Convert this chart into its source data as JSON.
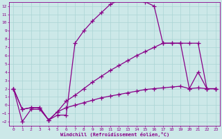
{
  "xlabel": "Windchill (Refroidissement éolien,°C)",
  "xlim": [
    -0.5,
    23.5
  ],
  "ylim": [
    -2.5,
    12.5
  ],
  "xticks": [
    0,
    1,
    2,
    3,
    4,
    5,
    6,
    7,
    8,
    9,
    10,
    11,
    12,
    13,
    14,
    15,
    16,
    17,
    18,
    19,
    20,
    21,
    22,
    23
  ],
  "yticks": [
    -2,
    -1,
    0,
    1,
    2,
    3,
    4,
    5,
    6,
    7,
    8,
    9,
    10,
    11,
    12
  ],
  "bg_color": "#cce8e8",
  "grid_color": "#aad4d4",
  "line_color": "#880088",
  "line_width": 0.9,
  "marker": "+",
  "marker_size": 4,
  "lines": [
    {
      "x": [
        0,
        1,
        2,
        3,
        4,
        5,
        6,
        7,
        8,
        9,
        10,
        11,
        12,
        13,
        14,
        15,
        16,
        17,
        18,
        19,
        20,
        21,
        22,
        23
      ],
      "y": [
        2,
        -2,
        -0.5,
        -0.5,
        -1.8,
        -1.2,
        -1.2,
        7.5,
        9.0,
        10.2,
        11.2,
        12.2,
        12.7,
        13.0,
        13.0,
        12.5,
        12.0,
        7.5,
        7.5,
        7.5,
        7.5,
        7.5,
        2.0,
        2.0
      ]
    },
    {
      "x": [
        0,
        1,
        2,
        3,
        4,
        5,
        6,
        7,
        8,
        9,
        10,
        11,
        12,
        13,
        14,
        15,
        16,
        17,
        18,
        19,
        20,
        21,
        22,
        23
      ],
      "y": [
        2,
        -0.5,
        -0.3,
        -0.3,
        -1.8,
        -0.8,
        0.5,
        1.2,
        2.0,
        2.8,
        3.5,
        4.2,
        4.8,
        5.4,
        6.0,
        6.5,
        7.0,
        7.5,
        7.5,
        7.5,
        2.0,
        4.0,
        2.0,
        2.0
      ]
    },
    {
      "x": [
        0,
        1,
        2,
        3,
        4,
        5,
        6,
        7,
        8,
        9,
        10,
        11,
        12,
        13,
        14,
        15,
        16,
        17,
        18,
        19,
        20,
        21,
        22,
        23
      ],
      "y": [
        2,
        -0.5,
        -0.3,
        -0.3,
        -1.8,
        -0.8,
        -0.3,
        0.0,
        0.3,
        0.6,
        0.9,
        1.1,
        1.3,
        1.5,
        1.7,
        1.9,
        2.0,
        2.1,
        2.2,
        2.3,
        2.0,
        2.1,
        2.0,
        2.0
      ]
    }
  ]
}
